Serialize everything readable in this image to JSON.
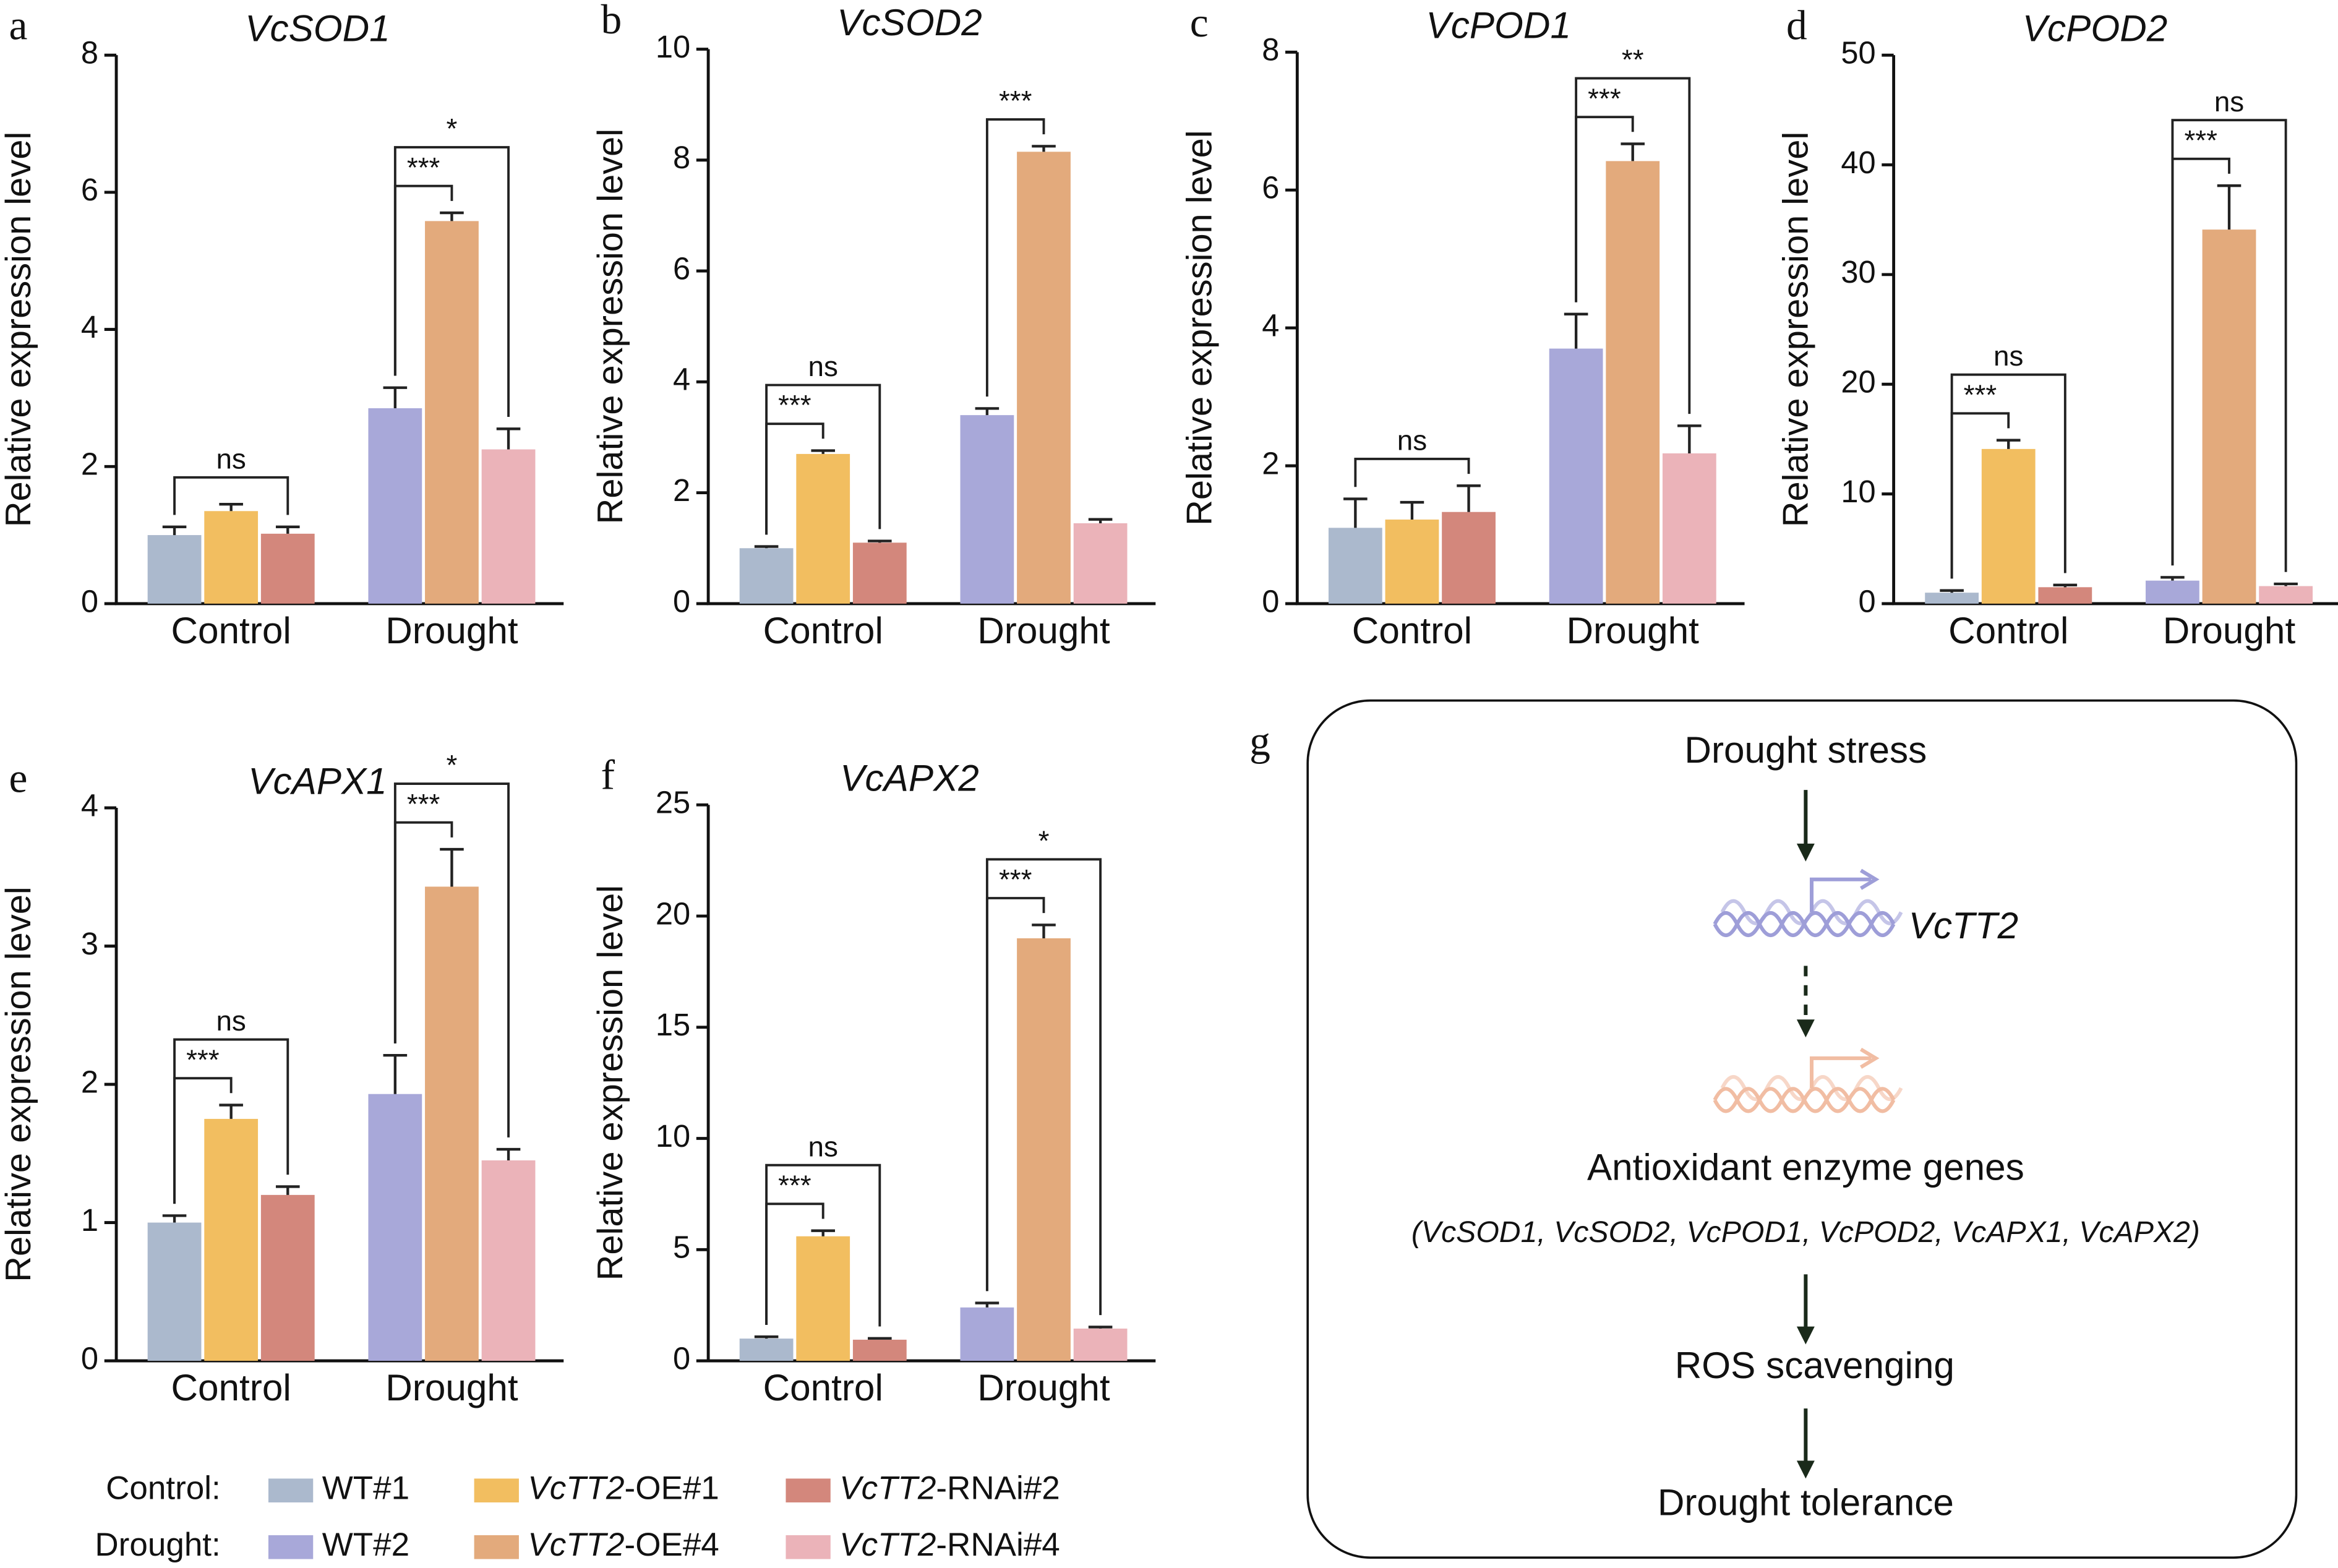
{
  "chart_data": [
    {
      "type": "bar",
      "label": "a",
      "title": "VcSOD1",
      "y_label": "Relative expression level",
      "categories": [
        "Control",
        "Drought"
      ],
      "series": [
        {
          "values": [
            1.0,
            2.85
          ],
          "errors": [
            0.12,
            0.3
          ]
        },
        {
          "values": [
            1.35,
            5.58
          ],
          "errors": [
            0.1,
            0.12
          ]
        },
        {
          "values": [
            1.02,
            2.25
          ],
          "errors": [
            0.1,
            0.3
          ]
        }
      ],
      "ylim": [
        0,
        8
      ],
      "yticks": [
        0,
        2,
        4,
        6,
        8
      ],
      "annotations": [
        {
          "category": 0,
          "from": 0,
          "to": 2,
          "text": "ns"
        },
        {
          "category": 1,
          "from": 0,
          "to": 1,
          "text": "***"
        },
        {
          "category": 1,
          "from": 0,
          "to": 2,
          "text": "*"
        }
      ]
    },
    {
      "type": "bar",
      "label": "b",
      "title": "VcSOD2",
      "y_label": "Relative expression level",
      "categories": [
        "Control",
        "Drought"
      ],
      "series": [
        {
          "values": [
            1.0,
            3.4
          ],
          "errors": [
            0.03,
            0.12
          ]
        },
        {
          "values": [
            2.7,
            8.15
          ],
          "errors": [
            0.06,
            0.1
          ]
        },
        {
          "values": [
            1.1,
            1.45
          ],
          "errors": [
            0.03,
            0.07
          ]
        }
      ],
      "ylim": [
        0,
        10
      ],
      "yticks": [
        0,
        2,
        4,
        6,
        8,
        10
      ],
      "annotations": [
        {
          "category": 0,
          "from": 0,
          "to": 1,
          "text": "***"
        },
        {
          "category": 0,
          "from": 0,
          "to": 2,
          "text": "ns"
        },
        {
          "category": 1,
          "from": 0,
          "to": 1,
          "text": "***"
        }
      ]
    },
    {
      "type": "bar",
      "label": "c",
      "title": "VcPOD1",
      "y_label": "Relative expression level",
      "categories": [
        "Control",
        "Drought"
      ],
      "series": [
        {
          "values": [
            1.1,
            3.7
          ],
          "errors": [
            0.42,
            0.5
          ]
        },
        {
          "values": [
            1.22,
            6.42
          ],
          "errors": [
            0.25,
            0.25
          ]
        },
        {
          "values": [
            1.33,
            2.18
          ],
          "errors": [
            0.38,
            0.4
          ]
        }
      ],
      "ylim": [
        0,
        8
      ],
      "yticks": [
        0,
        2,
        4,
        6,
        8
      ],
      "annotations": [
        {
          "category": 0,
          "from": 0,
          "to": 2,
          "text": "ns"
        },
        {
          "category": 1,
          "from": 0,
          "to": 1,
          "text": "***"
        },
        {
          "category": 1,
          "from": 0,
          "to": 2,
          "text": "**"
        }
      ]
    },
    {
      "type": "bar",
      "label": "d",
      "title": "VcPOD2",
      "y_label": "Relative expression level",
      "categories": [
        "Control",
        "Drought"
      ],
      "series": [
        {
          "values": [
            1.0,
            2.1
          ],
          "errors": [
            0.2,
            0.3
          ]
        },
        {
          "values": [
            14.1,
            34.1
          ],
          "errors": [
            0.8,
            4.0
          ]
        },
        {
          "values": [
            1.5,
            1.6
          ],
          "errors": [
            0.2,
            0.2
          ]
        }
      ],
      "ylim": [
        0,
        50
      ],
      "yticks": [
        0,
        10,
        20,
        30,
        40,
        50
      ],
      "annotations": [
        {
          "category": 0,
          "from": 0,
          "to": 1,
          "text": "***"
        },
        {
          "category": 0,
          "from": 0,
          "to": 2,
          "text": "ns"
        },
        {
          "category": 1,
          "from": 0,
          "to": 1,
          "text": "***"
        },
        {
          "category": 1,
          "from": 0,
          "to": 2,
          "text": "ns"
        }
      ]
    },
    {
      "type": "bar",
      "label": "e",
      "title": "VcAPX1",
      "y_label": "Relative expression level",
      "categories": [
        "Control",
        "Drought"
      ],
      "series": [
        {
          "values": [
            1.0,
            1.93
          ],
          "errors": [
            0.05,
            0.28
          ]
        },
        {
          "values": [
            1.75,
            3.43
          ],
          "errors": [
            0.1,
            0.27
          ]
        },
        {
          "values": [
            1.2,
            1.45
          ],
          "errors": [
            0.06,
            0.08
          ]
        }
      ],
      "ylim": [
        0,
        4
      ],
      "yticks": [
        0,
        1,
        2,
        3,
        4
      ],
      "annotations": [
        {
          "category": 0,
          "from": 0,
          "to": 1,
          "text": "***"
        },
        {
          "category": 0,
          "from": 0,
          "to": 2,
          "text": "ns"
        },
        {
          "category": 1,
          "from": 0,
          "to": 1,
          "text": "***"
        },
        {
          "category": 1,
          "from": 0,
          "to": 2,
          "text": "*"
        }
      ]
    },
    {
      "type": "bar",
      "label": "f",
      "title": "VcAPX2",
      "y_label": "Relative expression level",
      "categories": [
        "Control",
        "Drought"
      ],
      "series": [
        {
          "values": [
            1.0,
            2.4
          ],
          "errors": [
            0.08,
            0.2
          ]
        },
        {
          "values": [
            5.6,
            19.0
          ],
          "errors": [
            0.25,
            0.6
          ]
        },
        {
          "values": [
            0.95,
            1.45
          ],
          "errors": [
            0.06,
            0.07
          ]
        }
      ],
      "ylim": [
        0,
        25
      ],
      "yticks": [
        0,
        5,
        10,
        15,
        20,
        25
      ],
      "annotations": [
        {
          "category": 0,
          "from": 0,
          "to": 1,
          "text": "***"
        },
        {
          "category": 0,
          "from": 0,
          "to": 2,
          "text": "ns"
        },
        {
          "category": 1,
          "from": 0,
          "to": 1,
          "text": "***"
        },
        {
          "category": 1,
          "from": 0,
          "to": 2,
          "text": "*"
        }
      ]
    }
  ],
  "legend": {
    "rows": [
      {
        "label": "Control:",
        "items": [
          {
            "name": "WT#1",
            "color": "#abb9cd"
          },
          {
            "name_italic": "VcTT2",
            "name": "-OE#1",
            "color": "#f2be60"
          },
          {
            "name_italic": "VcTT2",
            "name": "-RNAi#2",
            "color": "#d3877c"
          }
        ]
      },
      {
        "label": "Drought:",
        "items": [
          {
            "name": "WT#2",
            "color": "#a8a8d9"
          },
          {
            "name_italic": "VcTT2",
            "name": "-OE#4",
            "color": "#e3aa7c"
          },
          {
            "name_italic": "VcTT2",
            "name": "-RNAi#4",
            "color": "#ebb3b9"
          }
        ]
      }
    ]
  },
  "diagram": {
    "label": "g",
    "stress": "Drought stress",
    "gene": "VcTT2",
    "targets": "Antioxidant enzyme genes",
    "targets_list": "(VcSOD1, VcSOD2, VcPOD1, VcPOD2, VcAPX1, VcAPX2)",
    "process": "ROS scavenging",
    "outcome": "Drought tolerance"
  }
}
